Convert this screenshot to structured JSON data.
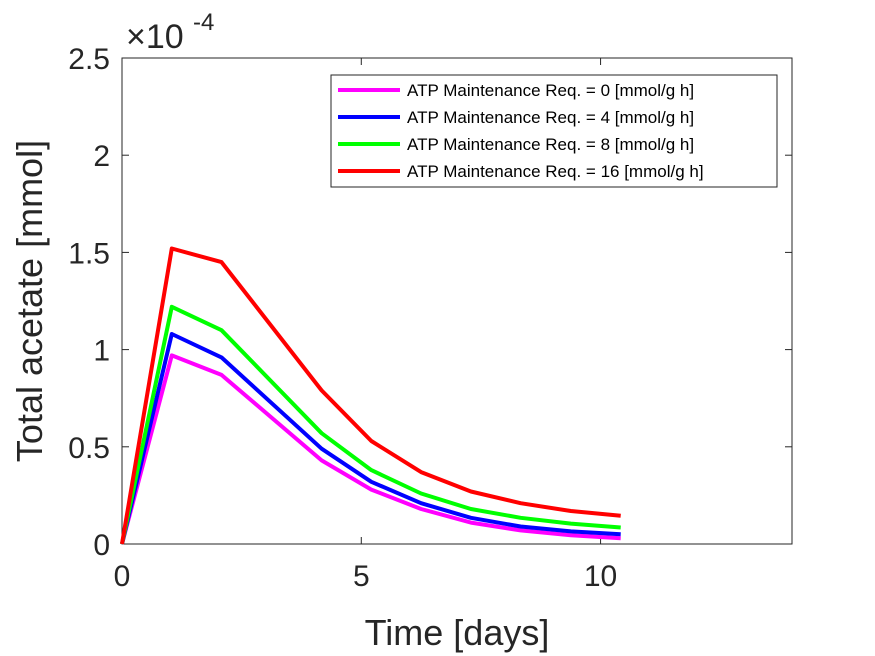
{
  "chart_data": {
    "type": "line",
    "title": "",
    "xlabel": "Time [days]",
    "ylabel": "Total acetate [mmol]",
    "xlim": [
      0,
      14
    ],
    "ylim": [
      0,
      2.5
    ],
    "y_exponent_multiplier": "×10",
    "y_exponent_power": "-4",
    "x_ticks": [
      0,
      5,
      10
    ],
    "x_tick_labels": [
      "0",
      "5",
      "10"
    ],
    "y_ticks": [
      0,
      0.5,
      1,
      1.5,
      2,
      2.5
    ],
    "y_tick_labels": [
      "0",
      "0.5",
      "1",
      "1.5",
      "2",
      "2.5"
    ],
    "grid": false,
    "legend_position": "top-right",
    "x": [
      0,
      1.04,
      2.08,
      4.17,
      5.21,
      6.25,
      7.29,
      8.33,
      9.38,
      10.42
    ],
    "series": [
      {
        "name": "ATP Maintenance Req. = 0 [mmol/g h]",
        "color": "#ff00ff",
        "values": [
          0,
          0.97,
          0.87,
          0.43,
          0.28,
          0.18,
          0.11,
          0.07,
          0.045,
          0.03
        ]
      },
      {
        "name": "ATP Maintenance Req. = 4 [mmol/g h]",
        "color": "#0000ff",
        "values": [
          0,
          1.08,
          0.96,
          0.49,
          0.32,
          0.21,
          0.135,
          0.09,
          0.065,
          0.05
        ]
      },
      {
        "name": "ATP Maintenance Req. = 8 [mmol/g h]",
        "color": "#00ff00",
        "values": [
          0,
          1.22,
          1.1,
          0.57,
          0.38,
          0.26,
          0.18,
          0.135,
          0.105,
          0.085
        ]
      },
      {
        "name": "ATP Maintenance Req. = 16 [mmol/g h]",
        "color": "#ff0000",
        "values": [
          0,
          1.52,
          1.45,
          0.79,
          0.53,
          0.37,
          0.27,
          0.21,
          0.17,
          0.145
        ]
      }
    ]
  }
}
